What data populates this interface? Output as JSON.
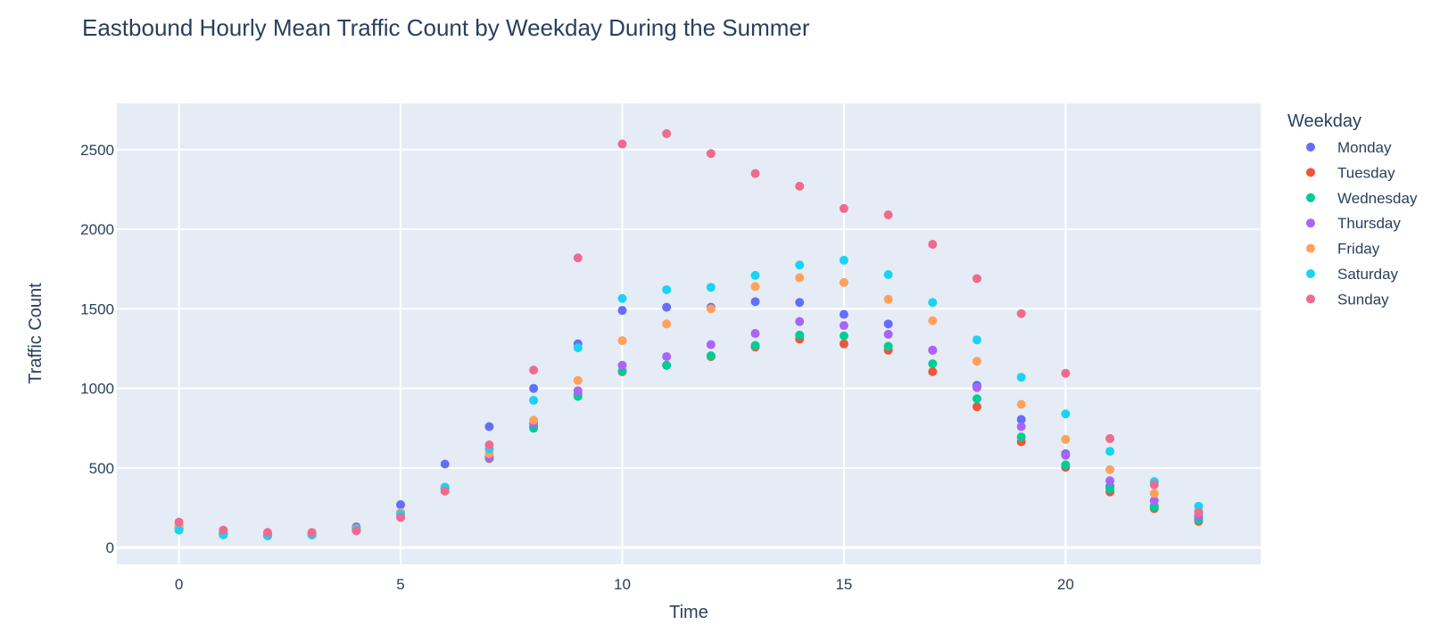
{
  "chart_data": {
    "type": "scatter",
    "title": "Eastbound Hourly Mean Traffic Count by Weekday During the Summer",
    "xlabel": "Time",
    "ylabel": "Traffic Count",
    "xlim": [
      -1.4,
      24.4
    ],
    "ylim": [
      -105,
      2790
    ],
    "xticks": [
      0,
      5,
      10,
      15,
      20
    ],
    "yticks": [
      0,
      500,
      1000,
      1500,
      2000,
      2500
    ],
    "grid": true,
    "plot_bgcolor": "#e5ecf6",
    "legend": {
      "title": "Weekday",
      "placement": "right"
    },
    "x": [
      0,
      1,
      2,
      3,
      4,
      5,
      6,
      7,
      8,
      9,
      10,
      11,
      12,
      13,
      14,
      15,
      16,
      17,
      18,
      19,
      20,
      21,
      22,
      23
    ],
    "series": [
      {
        "name": "Monday",
        "color": "#636efa",
        "values": [
          130,
          90,
          80,
          85,
          130,
          270,
          525,
          760,
          1000,
          1280,
          1490,
          1510,
          1510,
          1545,
          1540,
          1465,
          1405,
          1240,
          1020,
          805,
          590,
          385,
          260,
          190
        ]
      },
      {
        "name": "Tuesday",
        "color": "#ef553b",
        "values": [
          125,
          85,
          75,
          80,
          110,
          215,
          370,
          560,
          760,
          960,
          1105,
          1145,
          1200,
          1260,
          1310,
          1280,
          1240,
          1105,
          885,
          665,
          505,
          350,
          245,
          165
        ]
      },
      {
        "name": "Wednesday",
        "color": "#00cc96",
        "values": [
          120,
          85,
          75,
          80,
          115,
          215,
          370,
          565,
          750,
          950,
          1110,
          1145,
          1205,
          1270,
          1335,
          1330,
          1265,
          1155,
          935,
          695,
          520,
          370,
          255,
          175
        ]
      },
      {
        "name": "Thursday",
        "color": "#ab63fa",
        "values": [
          125,
          90,
          80,
          85,
          120,
          220,
          375,
          570,
          780,
          985,
          1145,
          1200,
          1275,
          1345,
          1420,
          1395,
          1340,
          1240,
          1005,
          760,
          580,
          420,
          295,
          200
        ]
      },
      {
        "name": "Friday",
        "color": "#ffa15a",
        "values": [
          135,
          95,
          85,
          90,
          120,
          220,
          370,
          590,
          800,
          1050,
          1300,
          1405,
          1500,
          1640,
          1695,
          1665,
          1560,
          1425,
          1170,
          900,
          680,
          490,
          340,
          230
        ]
      },
      {
        "name": "Saturday",
        "color": "#19d3f3",
        "values": [
          110,
          80,
          75,
          80,
          115,
          210,
          380,
          620,
          925,
          1255,
          1565,
          1620,
          1635,
          1710,
          1775,
          1805,
          1715,
          1540,
          1305,
          1070,
          840,
          605,
          415,
          260
        ]
      },
      {
        "name": "Sunday",
        "color": "#ef6a8f",
        "values": [
          160,
          110,
          95,
          95,
          105,
          190,
          355,
          645,
          1115,
          1820,
          2535,
          2600,
          2475,
          2350,
          2270,
          2130,
          2090,
          1905,
          1690,
          1470,
          1095,
          685,
          395,
          220
        ]
      }
    ]
  }
}
